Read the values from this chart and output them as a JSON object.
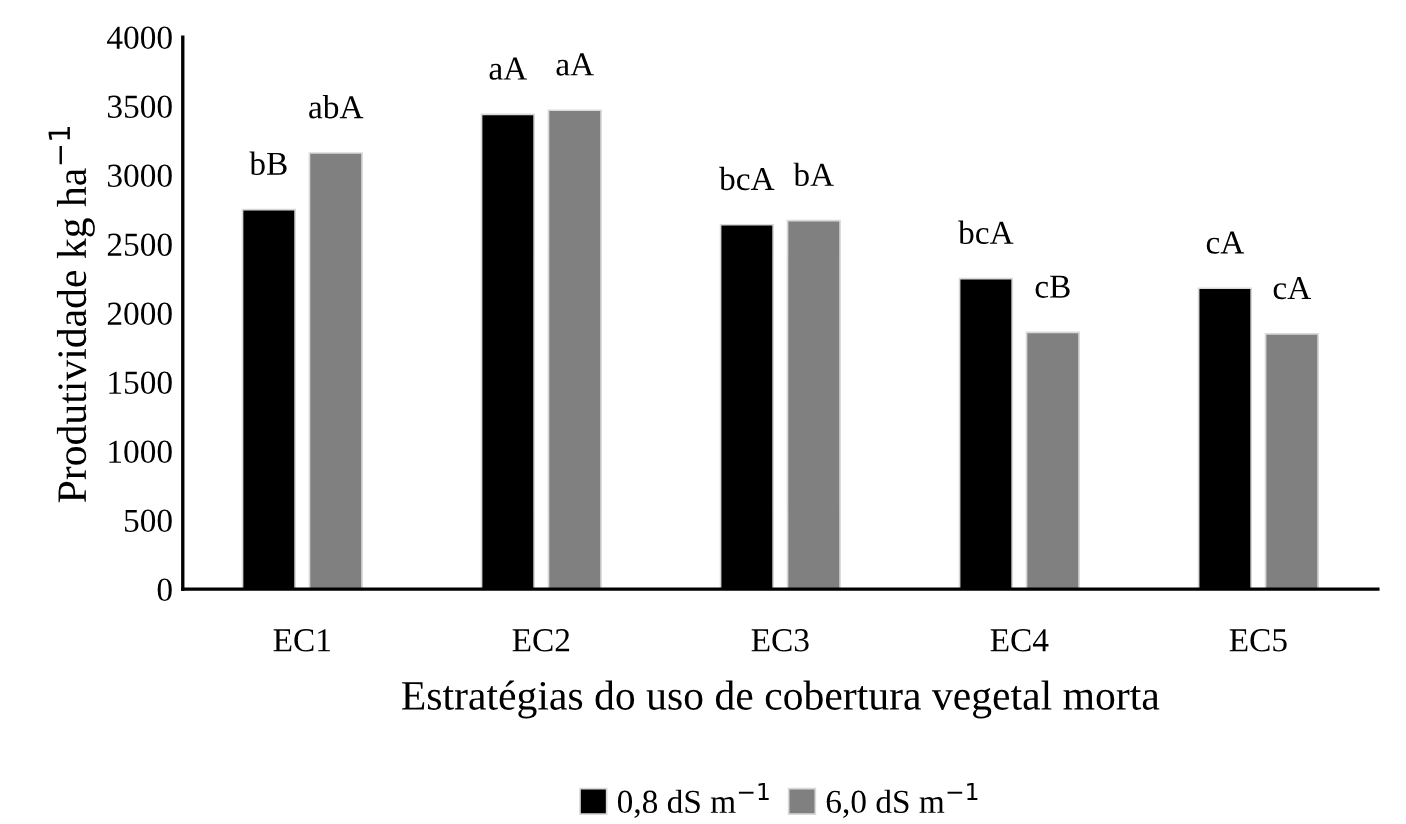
{
  "chart_data": {
    "type": "bar",
    "xlabel": "Estratégias do uso de cobertura vegetal morta",
    "ylabel": "Produtividade kg ha$^{−1}$",
    "categories": [
      "EC1",
      "EC2",
      "EC3",
      "EC4",
      "EC5"
    ],
    "series": [
      {
        "name": "0,8 dS m$^{−1}$",
        "color": "#000000",
        "values": [
          2750,
          3440,
          2640,
          2250,
          2180
        ],
        "value_labels": [
          "bB",
          "aA",
          "bcA",
          "bcA",
          "cA"
        ]
      },
      {
        "name": "6,0 dS m$^{−1}$",
        "color": "#808080",
        "values": [
          3160,
          3470,
          2670,
          1860,
          1850
        ],
        "value_labels": [
          "abA",
          "aA",
          "bA",
          "cB",
          "cA"
        ]
      }
    ],
    "ylim": [
      0,
      4000
    ],
    "yticks": [
      0,
      500,
      1000,
      1500,
      2000,
      2500,
      3000,
      3500,
      4000
    ],
    "grid": false,
    "legend": "bottom"
  }
}
